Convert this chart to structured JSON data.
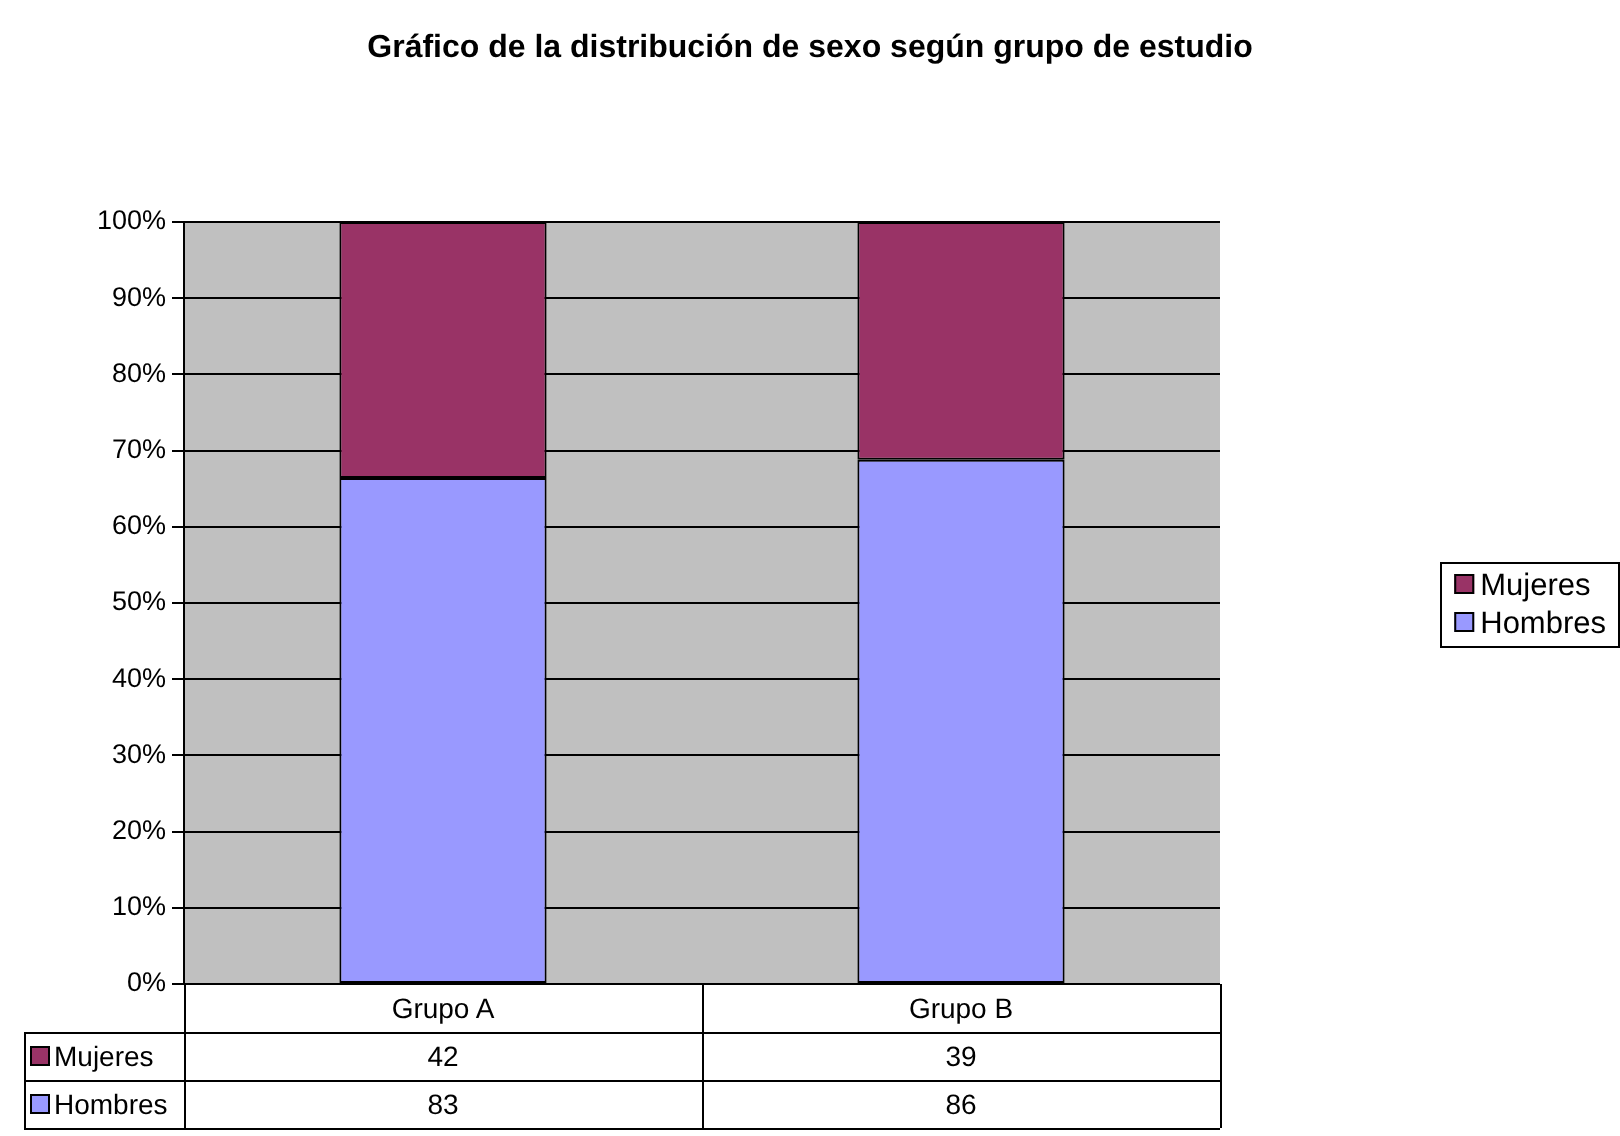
{
  "chart_data": {
    "type": "bar",
    "title": "Gráfico de la distribución de sexo según grupo de estudio",
    "categories": [
      "Grupo A",
      "Grupo B"
    ],
    "series": [
      {
        "name": "Hombres",
        "color": "#9999ff",
        "values": [
          66.4,
          68.8
        ]
      },
      {
        "name": "Mujeres",
        "color": "#993366",
        "values": [
          33.6,
          31.2
        ]
      }
    ],
    "stacked": true,
    "ylim": [
      0,
      100
    ],
    "yticks": [
      {
        "value": 0,
        "label": "0%"
      },
      {
        "value": 10,
        "label": "10%"
      },
      {
        "value": 20,
        "label": "20%"
      },
      {
        "value": 30,
        "label": "30%"
      },
      {
        "value": 40,
        "label": "40%"
      },
      {
        "value": 50,
        "label": "50%"
      },
      {
        "value": 60,
        "label": "60%"
      },
      {
        "value": 70,
        "label": "70%"
      },
      {
        "value": 80,
        "label": "80%"
      },
      {
        "value": 90,
        "label": "90%"
      },
      {
        "value": 100,
        "label": "100%"
      }
    ],
    "annotations": [
      "42",
      "39",
      "83",
      "86"
    ],
    "grid": "y",
    "legend": "right"
  }
}
